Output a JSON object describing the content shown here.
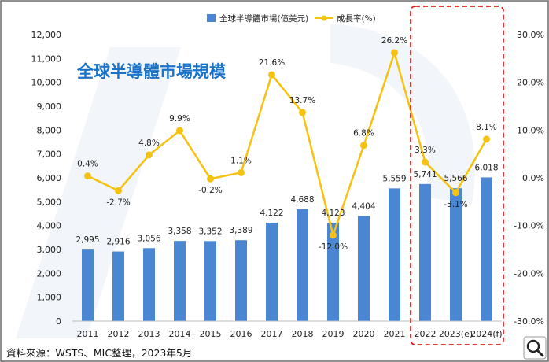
{
  "chart_data": {
    "type": "bar",
    "title": "全球半導體市場規模",
    "source": "資料來源：WSTS、MIC整理，2023年5月",
    "categories": [
      "2011",
      "2012",
      "2013",
      "2014",
      "2015",
      "2016",
      "2017",
      "2018",
      "2019",
      "2020",
      "2021",
      "2022",
      "2023(e)",
      "2024(f)"
    ],
    "series": [
      {
        "name": "全球半導體市場(億美元)",
        "kind": "bar",
        "axis": "left",
        "color": "#4a86d1",
        "values": [
          2995,
          2916,
          3056,
          3358,
          3352,
          3389,
          4122,
          4688,
          4123,
          4404,
          5559,
          5741,
          5566,
          6018
        ],
        "labels": [
          "2,995",
          "2,916",
          "3,056",
          "3,358",
          "3,352",
          "3,389",
          "4,122",
          "4,688",
          "4,123",
          "4,404",
          "5,559",
          "5,741",
          "5,566",
          "6,018"
        ]
      },
      {
        "name": "成長率(%)",
        "kind": "line",
        "axis": "right",
        "color": "#f5c211",
        "values": [
          0.4,
          -2.7,
          4.8,
          9.9,
          -0.2,
          1.1,
          21.6,
          13.7,
          -12.0,
          6.8,
          26.2,
          3.3,
          -3.1,
          8.1
        ],
        "labels": [
          "0.4%",
          "-2.7%",
          "4.8%",
          "9.9%",
          "-0.2%",
          "1.1%",
          "21.6%",
          "13.7%",
          "-12.0%",
          "6.8%",
          "26.2%",
          "3.3%",
          "-3.1%",
          "8.1%"
        ]
      }
    ],
    "y_left": {
      "range": [
        0,
        12000
      ],
      "ticks": [
        "0",
        "1,000",
        "2,000",
        "3,000",
        "4,000",
        "5,000",
        "6,000",
        "7,000",
        "8,000",
        "9,000",
        "10,000",
        "11,000",
        "12,000"
      ]
    },
    "y_right": {
      "range": [
        -30,
        30
      ],
      "ticks": [
        "-30.0%",
        "-20.0%",
        "-10.0%",
        "0.0%",
        "10.0%",
        "20.0%",
        "30.0%"
      ]
    },
    "highlight": {
      "categories": [
        "2022",
        "2023(e)",
        "2024(f)"
      ],
      "style": "red dashed box"
    },
    "grid": false,
    "legend_position": "top-center"
  },
  "colors": {
    "bar": "#4a86d1",
    "line": "#f5c211",
    "title": "#1a73c9",
    "highlight_box": "#e02020",
    "frame": "#555555"
  },
  "icons": [
    "magnifier-icon"
  ]
}
